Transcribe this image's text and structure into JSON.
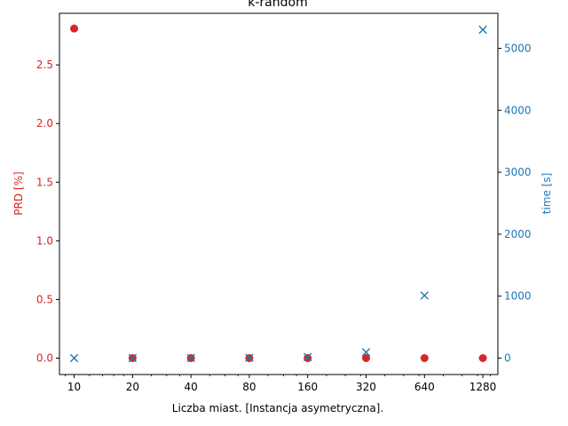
{
  "chart_data": {
    "type": "scatter",
    "title": "k-random",
    "xlabel": "Liczba miast. [Instancja asymetryczna].",
    "x_scale": "log2",
    "xlim": [
      8.4,
      1530
    ],
    "x_ticks": [
      10,
      20,
      40,
      80,
      160,
      320,
      640,
      1280
    ],
    "x_tick_labels": [
      "10",
      "20",
      "40",
      "80",
      "160",
      "320",
      "640",
      "1280"
    ],
    "left_axis": {
      "label": "PRD [%]",
      "color": "#d62728",
      "ylim": [
        -0.14,
        2.94
      ],
      "ticks": [
        0.0,
        0.5,
        1.0,
        1.5,
        2.0,
        2.5
      ],
      "tick_labels": [
        "0.0",
        "0.5",
        "1.0",
        "1.5",
        "2.0",
        "2.5"
      ]
    },
    "right_axis": {
      "label": "time [s]",
      "color": "#1f77b4",
      "ylim": [
        -265,
        5565
      ],
      "ticks": [
        0,
        1000,
        2000,
        3000,
        4000,
        5000
      ],
      "tick_labels": [
        "0",
        "1000",
        "2000",
        "3000",
        "4000",
        "5000"
      ]
    },
    "series": [
      {
        "axis": "left",
        "marker": "circle",
        "color": "#d62728",
        "x": [
          10,
          20,
          40,
          80,
          160,
          320,
          640,
          1280
        ],
        "y": [
          2.81,
          0.0,
          0.0,
          0.0,
          0.0,
          0.0,
          0.0,
          0.0
        ]
      },
      {
        "axis": "right",
        "marker": "x",
        "color": "#1f77b4",
        "x": [
          10,
          20,
          40,
          80,
          160,
          320,
          640,
          1280
        ],
        "y": [
          0,
          0,
          1,
          4,
          18,
          95,
          1010,
          5300
        ]
      }
    ]
  }
}
